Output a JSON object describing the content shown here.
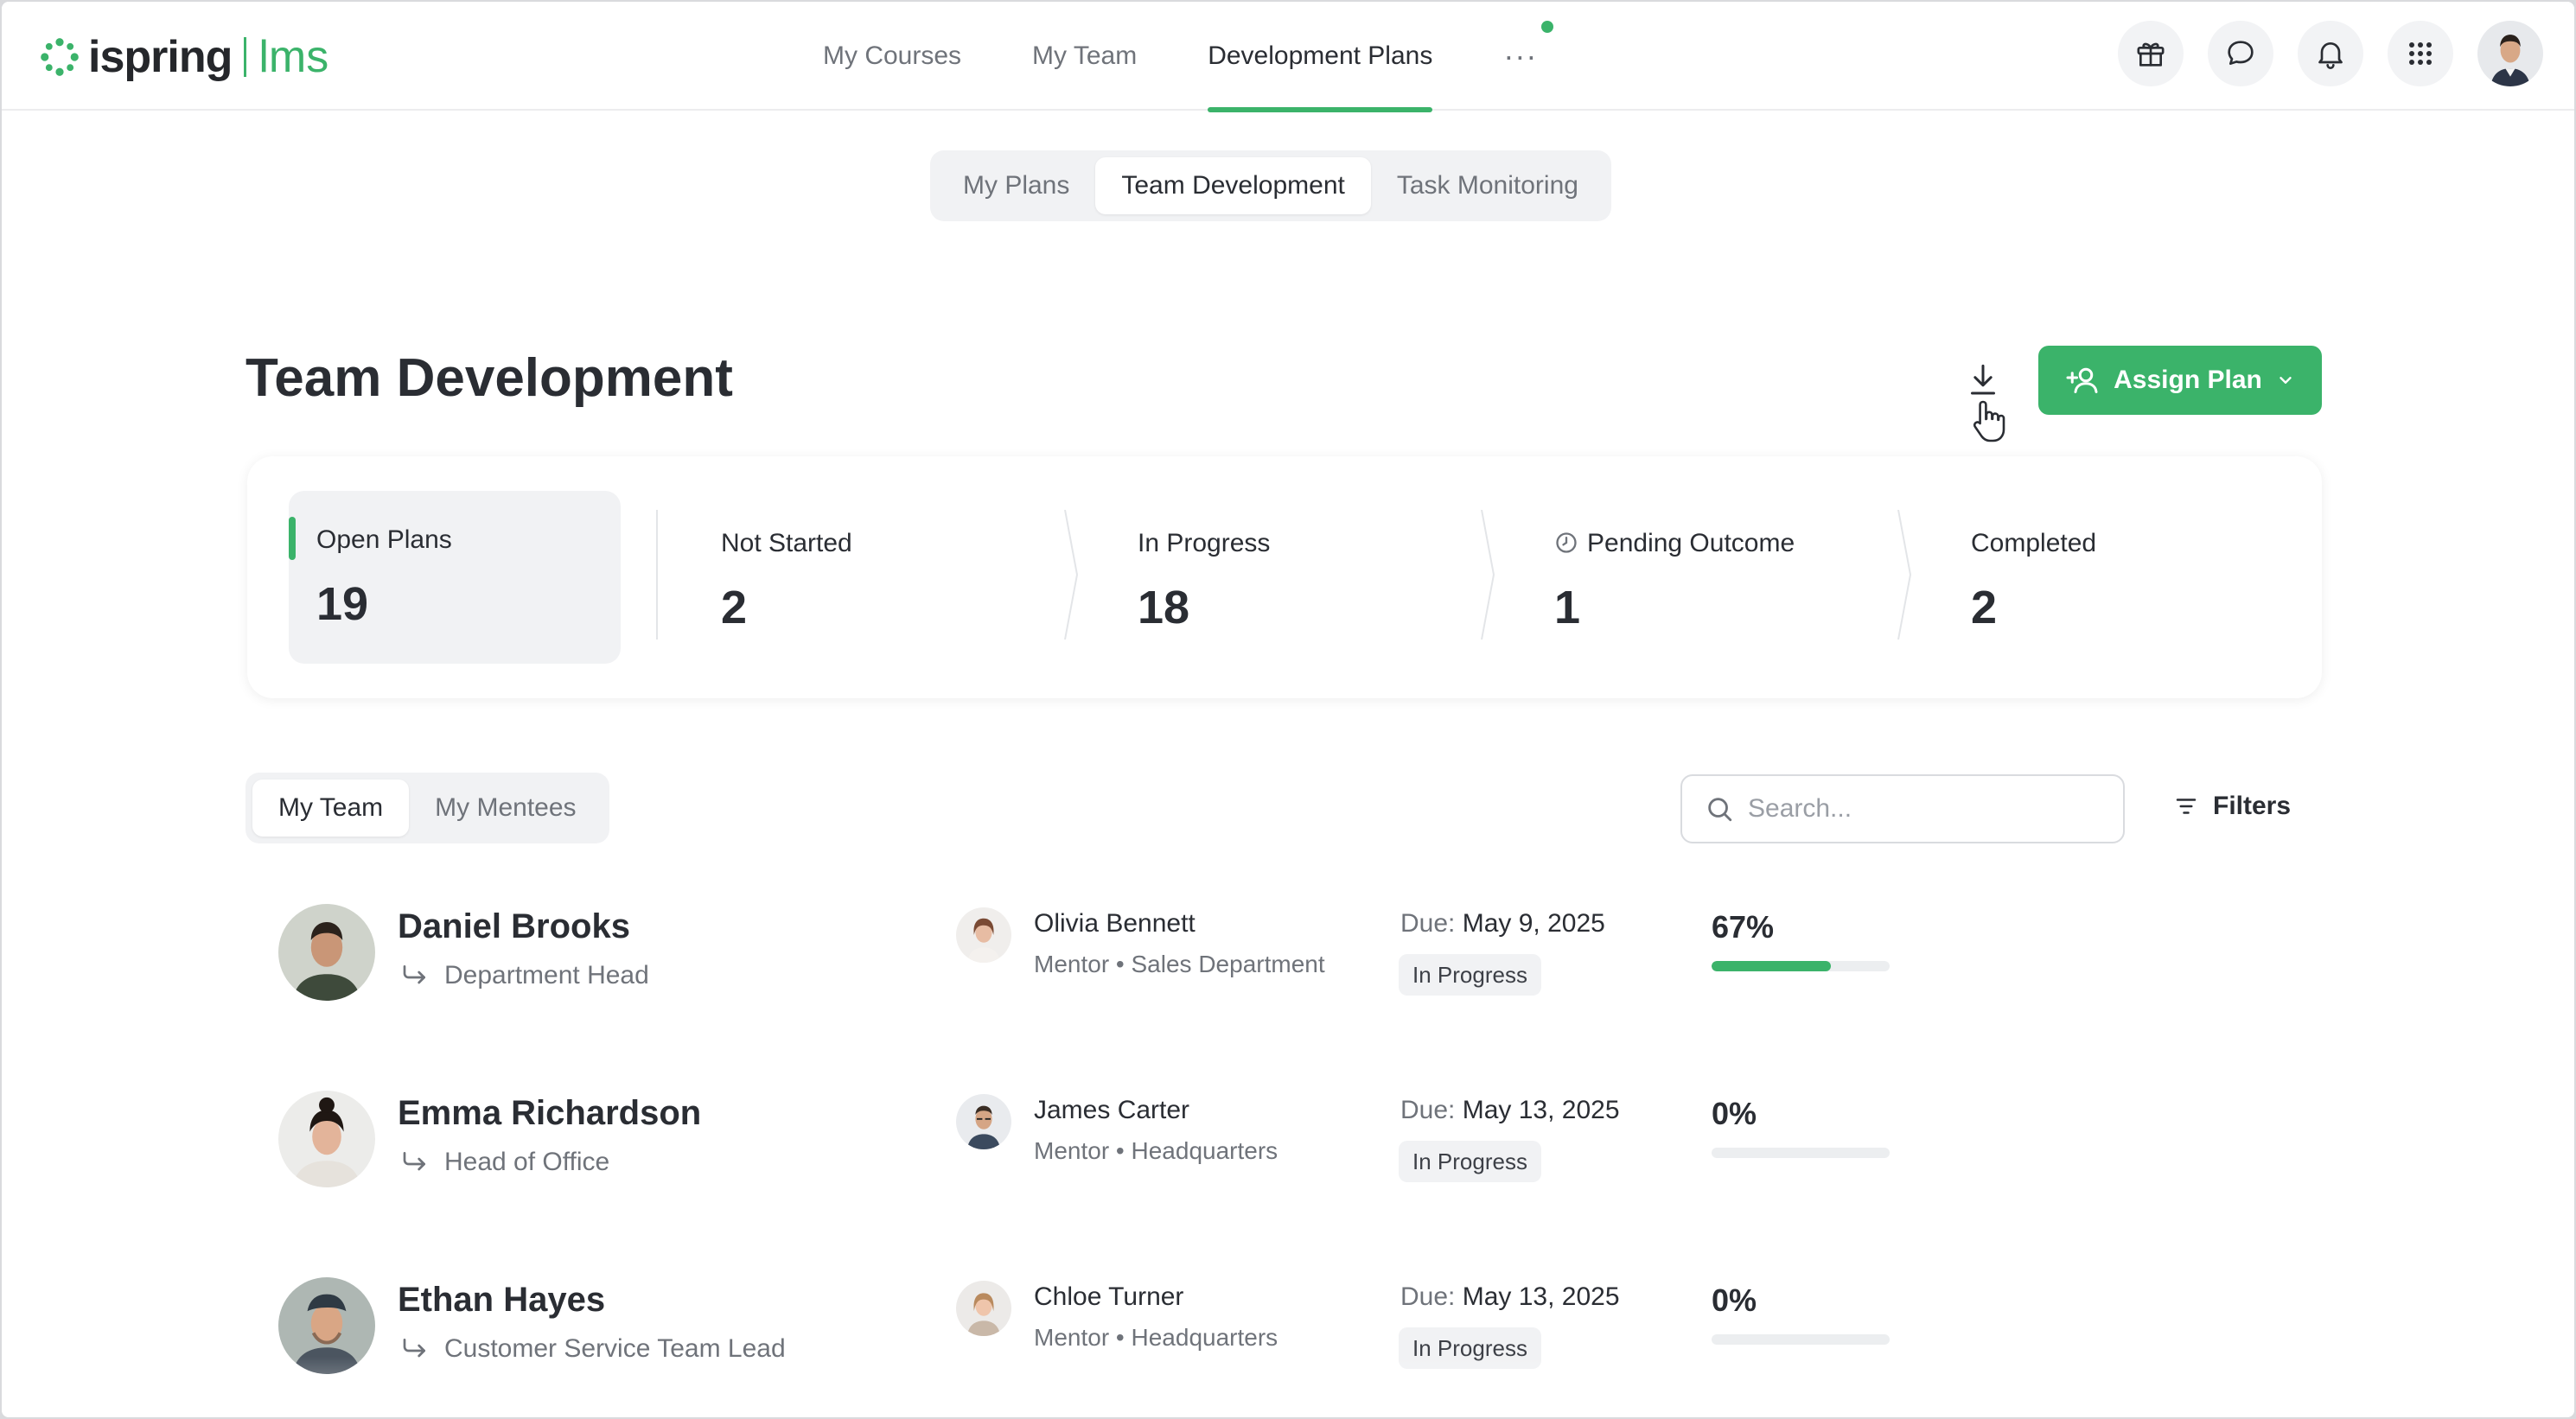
{
  "brand": {
    "name": "ispring",
    "product": "lms",
    "accent": "#3bb36a"
  },
  "nav": {
    "items": [
      {
        "label": "My Courses",
        "active": false
      },
      {
        "label": "My Team",
        "active": false
      },
      {
        "label": "Development Plans",
        "active": true
      }
    ],
    "more_label": "···"
  },
  "top_icons": [
    "gift-icon",
    "chat-icon",
    "bell-icon",
    "apps-grid-icon",
    "user-avatar"
  ],
  "subtabs": [
    {
      "label": "My Plans",
      "active": false
    },
    {
      "label": "Team Development",
      "active": true
    },
    {
      "label": "Task Monitoring",
      "active": false
    }
  ],
  "page_title": "Team Development",
  "assign_button": {
    "label": "Assign Plan"
  },
  "stats": [
    {
      "label": "Open Plans",
      "value": "19",
      "active": true
    },
    {
      "label": "Not Started",
      "value": "2"
    },
    {
      "label": "In Progress",
      "value": "18"
    },
    {
      "label": "Pending Outcome",
      "value": "1",
      "icon": "clock-icon"
    },
    {
      "label": "Completed",
      "value": "2"
    }
  ],
  "team_toggle": [
    {
      "label": "My Team",
      "active": true
    },
    {
      "label": "My Mentees",
      "active": false
    }
  ],
  "search": {
    "placeholder": "Search..."
  },
  "filters_label": "Filters",
  "rows": [
    {
      "name": "Daniel Brooks",
      "role": "Department Head",
      "mentor": "Olivia Bennett",
      "mentor_role": "Mentor • Sales Department",
      "due_label": "Due:",
      "due_date": "May 9, 2025",
      "status": "In Progress",
      "percent_label": "67%",
      "progress": 0.67
    },
    {
      "name": "Emma Richardson",
      "role": "Head of Office",
      "mentor": "James Carter",
      "mentor_role": "Mentor • Headquarters",
      "due_label": "Due:",
      "due_date": "May 13, 2025",
      "status": "In Progress",
      "percent_label": "0%",
      "progress": 0
    },
    {
      "name": "Ethan Hayes",
      "role": "Customer Service Team Lead",
      "mentor": "Chloe Turner",
      "mentor_role": "Mentor • Headquarters",
      "due_label": "Due:",
      "due_date": "May 13, 2025",
      "status": "In Progress",
      "percent_label": "0%",
      "progress": 0
    }
  ]
}
